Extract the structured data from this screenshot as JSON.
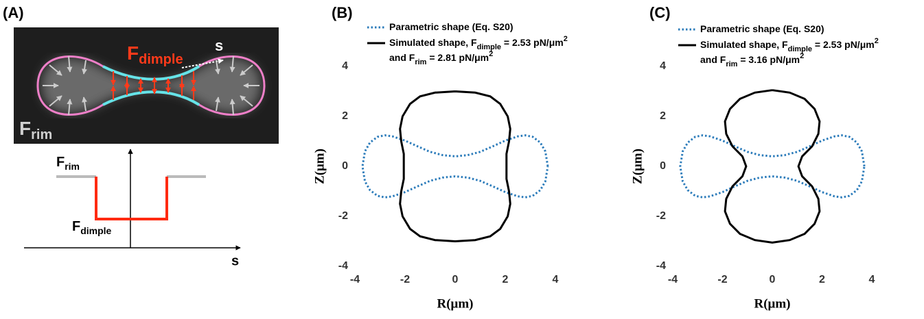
{
  "panel_a": {
    "label": "(A)",
    "image": {
      "force_dimple": {
        "main": "F",
        "sub": "dimple"
      },
      "arc_length": "s",
      "force_rim": {
        "main": "F",
        "sub": "rim"
      }
    },
    "profile": {
      "force_rim": {
        "main": "F",
        "sub": "rim"
      },
      "force_dimple": {
        "main": "F",
        "sub": "dimple"
      },
      "arc_length": "s"
    }
  },
  "chart_data": [
    {
      "type": "line",
      "title": "(B)",
      "xlabel": "R(μm)",
      "ylabel": "Z(μm)",
      "xlim": [
        -4,
        4
      ],
      "ylim": [
        -4,
        4
      ],
      "xticks": [
        -4,
        -2,
        0,
        2,
        4
      ],
      "yticks": [
        -4,
        -2,
        0,
        2,
        4
      ],
      "series": [
        {
          "name": [
            [
              {
                "text": "Parametric shape (Eq. S20)"
              }
            ]
          ],
          "color": "#2b7bba",
          "line_style": "dotted",
          "x": [
            3.7,
            3.6,
            3.4,
            3.1,
            2.8,
            2.5,
            2,
            1.5,
            1,
            0.5,
            0,
            -0.5,
            -1,
            -1.5,
            -2,
            -2.5,
            -2.8,
            -3.1,
            -3.4,
            -3.6,
            -3.7,
            -3.6,
            -3.4,
            -3.1,
            -2.8,
            -2.5,
            -2,
            -1.5,
            -1,
            -0.5,
            0,
            0.5,
            1,
            1.5,
            2,
            2.5,
            2.8,
            3.1,
            3.4,
            3.6,
            3.7
          ],
          "values": [
            0,
            0.6,
            0.95,
            1.18,
            1.24,
            1.2,
            1.03,
            0.8,
            0.58,
            0.45,
            0.4,
            0.45,
            0.58,
            0.8,
            1.03,
            1.2,
            1.24,
            1.18,
            0.95,
            0.6,
            0,
            -0.6,
            -0.95,
            -1.18,
            -1.24,
            -1.2,
            -1.03,
            -0.8,
            -0.58,
            -0.45,
            -0.4,
            -0.45,
            -0.58,
            -0.8,
            -1.03,
            -1.2,
            -1.24,
            -1.18,
            -0.95,
            -0.6,
            0
          ]
        },
        {
          "name": [
            [
              {
                "text": "Simulated shape, F"
              },
              {
                "text": "dimple",
                "style": "sub"
              },
              {
                "text": " = 2.53 pN/μm"
              },
              {
                "text": "2",
                "style": "sup"
              }
            ],
            [
              {
                "text": "and F"
              },
              {
                "text": "rim",
                "style": "sub"
              },
              {
                "text": " = 2.81    pN/μm"
              },
              {
                "text": "2",
                "style": "sup"
              }
            ]
          ],
          "color": "#000000",
          "line_style": "solid",
          "x": [
            0,
            0.8,
            1.4,
            1.8,
            2.1,
            2.2,
            2.15,
            2.05,
            2.05,
            2.05,
            2.15,
            2.2,
            2.1,
            1.8,
            1.4,
            0.8,
            0,
            -0.8,
            -1.4,
            -1.8,
            -2.1,
            -2.2,
            -2.15,
            -2.05,
            -2.05,
            -2.05,
            -2.15,
            -2.2,
            -2.1,
            -1.8,
            -1.4,
            -0.8,
            0
          ],
          "values": [
            3,
            2.95,
            2.8,
            2.5,
            2,
            1.5,
            1,
            0.5,
            0,
            -0.5,
            -1,
            -1.5,
            -2,
            -2.5,
            -2.8,
            -2.95,
            -3,
            -2.95,
            -2.8,
            -2.5,
            -2,
            -1.5,
            -1,
            -0.5,
            0,
            0.5,
            1,
            1.5,
            2,
            2.5,
            2.8,
            2.95,
            3
          ]
        }
      ]
    },
    {
      "type": "line",
      "title": "(C)",
      "xlabel": "R(μm)",
      "ylabel": "Z(μm)",
      "xlim": [
        -4,
        4
      ],
      "ylim": [
        -4,
        4
      ],
      "xticks": [
        -4,
        -2,
        0,
        2,
        4
      ],
      "yticks": [
        -4,
        -2,
        0,
        2,
        4
      ],
      "series": [
        {
          "name": [
            [
              {
                "text": "Parametric shape (Eq. S20)"
              }
            ]
          ],
          "color": "#2b7bba",
          "line_style": "dotted",
          "x": [
            3.7,
            3.6,
            3.4,
            3.1,
            2.8,
            2.5,
            2,
            1.5,
            1,
            0.5,
            0,
            -0.5,
            -1,
            -1.5,
            -2,
            -2.5,
            -2.8,
            -3.1,
            -3.4,
            -3.6,
            -3.7,
            -3.6,
            -3.4,
            -3.1,
            -2.8,
            -2.5,
            -2,
            -1.5,
            -1,
            -0.5,
            0,
            0.5,
            1,
            1.5,
            2,
            2.5,
            2.8,
            3.1,
            3.4,
            3.6,
            3.7
          ],
          "values": [
            0,
            0.6,
            0.95,
            1.18,
            1.24,
            1.2,
            1.03,
            0.8,
            0.58,
            0.45,
            0.4,
            0.45,
            0.58,
            0.8,
            1.03,
            1.2,
            1.24,
            1.18,
            0.95,
            0.6,
            0,
            -0.6,
            -0.95,
            -1.18,
            -1.24,
            -1.2,
            -1.03,
            -0.8,
            -0.58,
            -0.45,
            -0.4,
            -0.45,
            -0.58,
            -0.8,
            -1.03,
            -1.2,
            -1.24,
            -1.18,
            -0.95,
            -0.6,
            0
          ]
        },
        {
          "name": [
            [
              {
                "text": "Simulated shape, F"
              },
              {
                "text": "dimple",
                "style": "sub"
              },
              {
                "text": " = 2.53 pN/μm"
              },
              {
                "text": "2",
                "style": "sup"
              }
            ],
            [
              {
                "text": "and F"
              },
              {
                "text": "rim",
                "style": "sub"
              },
              {
                "text": " = 3.16    pN/μm"
              },
              {
                "text": "2",
                "style": "sup"
              }
            ]
          ],
          "color": "#000000",
          "line_style": "solid",
          "x": [
            0,
            0.7,
            1.3,
            1.7,
            1.9,
            1.85,
            1.6,
            1.2,
            1.05,
            1.2,
            1.6,
            1.85,
            1.9,
            1.7,
            1.3,
            0.7,
            0,
            -0.7,
            -1.3,
            -1.7,
            -1.9,
            -1.85,
            -1.6,
            -1.2,
            -1.05,
            -1.2,
            -1.6,
            -1.85,
            -1.9,
            -1.7,
            -1.3,
            -0.7,
            0
          ],
          "values": [
            3.05,
            2.95,
            2.7,
            2.3,
            1.8,
            1.3,
            0.8,
            0.4,
            0,
            -0.4,
            -0.8,
            -1.3,
            -1.8,
            -2.3,
            -2.7,
            -2.95,
            -3.05,
            -2.95,
            -2.7,
            -2.3,
            -1.8,
            -1.3,
            -0.8,
            -0.4,
            0,
            0.4,
            0.8,
            1.3,
            1.8,
            2.3,
            2.7,
            2.95,
            3.05
          ]
        }
      ]
    }
  ]
}
